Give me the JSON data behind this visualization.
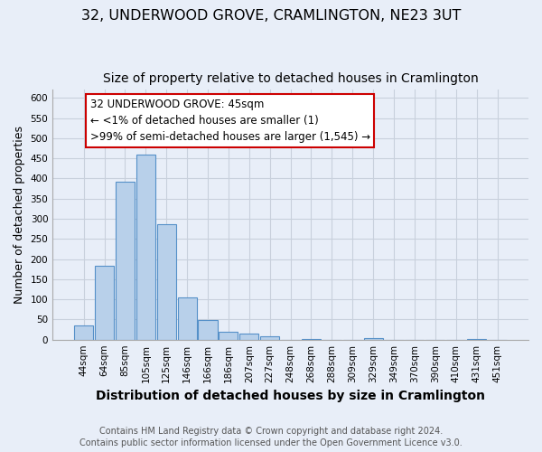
{
  "title": "32, UNDERWOOD GROVE, CRAMLINGTON, NE23 3UT",
  "subtitle": "Size of property relative to detached houses in Cramlington",
  "xlabel": "Distribution of detached houses by size in Cramlington",
  "ylabel": "Number of detached properties",
  "bin_labels": [
    "44sqm",
    "64sqm",
    "85sqm",
    "105sqm",
    "125sqm",
    "146sqm",
    "166sqm",
    "186sqm",
    "207sqm",
    "227sqm",
    "248sqm",
    "268sqm",
    "288sqm",
    "309sqm",
    "329sqm",
    "349sqm",
    "370sqm",
    "390sqm",
    "410sqm",
    "431sqm",
    "451sqm"
  ],
  "bar_heights": [
    35,
    183,
    393,
    460,
    287,
    105,
    48,
    20,
    15,
    8,
    0,
    2,
    0,
    0,
    3,
    0,
    0,
    0,
    0,
    2,
    0
  ],
  "bar_color": "#b8d0ea",
  "bar_edge_color": "#5590c8",
  "background_color": "#e8eef8",
  "plot_bg_color": "#e8eef8",
  "grid_color": "#c8d0dc",
  "ylim": [
    0,
    620
  ],
  "yticks": [
    0,
    50,
    100,
    150,
    200,
    250,
    300,
    350,
    400,
    450,
    500,
    550,
    600
  ],
  "annotation_box_text1": "32 UNDERWOOD GROVE: 45sqm",
  "annotation_box_text2": "← <1% of detached houses are smaller (1)",
  "annotation_box_text3": ">99% of semi-detached houses are larger (1,545) →",
  "annotation_box_color": "#ffffff",
  "annotation_box_edge_color": "#cc0000",
  "footer_text": "Contains HM Land Registry data © Crown copyright and database right 2024.\nContains public sector information licensed under the Open Government Licence v3.0.",
  "title_fontsize": 11.5,
  "subtitle_fontsize": 10,
  "xlabel_fontsize": 10,
  "ylabel_fontsize": 9,
  "tick_fontsize": 7.5,
  "footer_fontsize": 7,
  "annot_fontsize": 8.5
}
